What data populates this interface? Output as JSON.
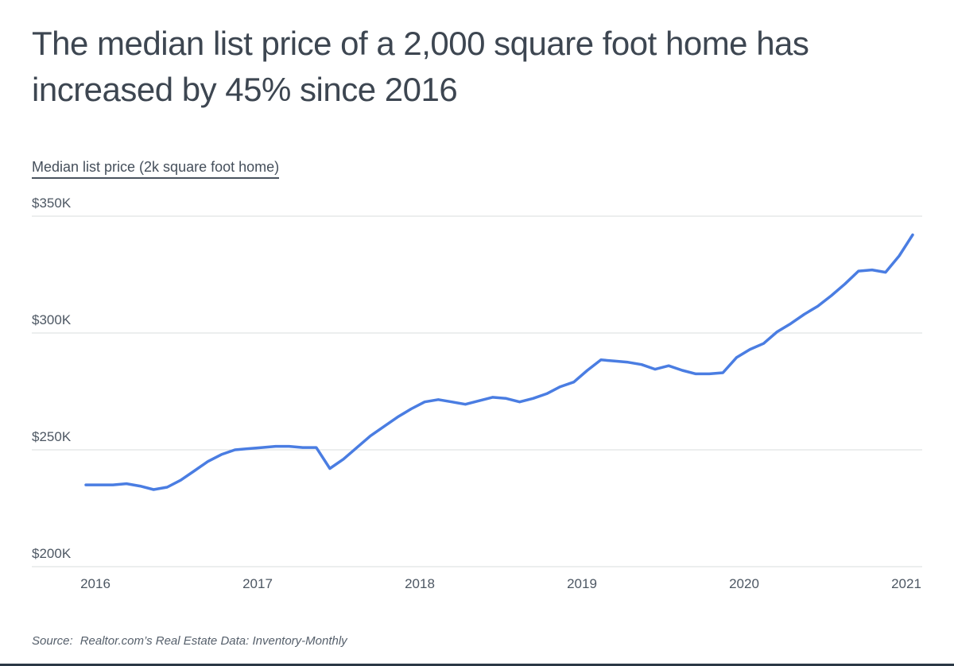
{
  "header": {
    "title_line1": "The median list price of a 2,000 square foot home has",
    "title_line2": "increased by 45% since 2016"
  },
  "legend": {
    "label": "Median list price (2k square foot home)"
  },
  "chart_data": {
    "type": "line",
    "title": "Median list price (2k square foot home)",
    "x_start": "2016-01",
    "x_interval": "monthly",
    "unit": "USD thousands",
    "values": [
      235,
      235,
      235,
      235.5,
      234.5,
      233,
      234,
      237,
      241,
      245,
      248,
      250,
      250.5,
      251,
      251.5,
      251.5,
      251,
      251,
      242,
      246,
      251,
      256,
      260,
      264,
      267.5,
      270.5,
      271.5,
      270.5,
      269.5,
      271,
      272.5,
      272,
      270.5,
      272,
      274,
      277,
      279,
      284,
      288.5,
      288,
      287.5,
      286.5,
      284.5,
      286,
      284,
      282.5,
      282.5,
      283,
      289.5,
      293,
      295.5,
      300.5,
      304,
      308,
      311.5,
      316,
      321,
      326.5,
      327,
      326,
      333,
      342
    ],
    "x_tick_labels": [
      "2016",
      "2017",
      "2018",
      "2019",
      "2020",
      "2021"
    ],
    "y_ticks": [
      {
        "label": "$350K",
        "value": 350
      },
      {
        "label": "$300K",
        "value": 300
      },
      {
        "label": "$250K",
        "value": 250
      },
      {
        "label": "$200K",
        "value": 200
      }
    ],
    "ylim": [
      200,
      350
    ],
    "grid": "horizontal",
    "legend_position": "top-left",
    "line_color": "#4a7de2",
    "gridline_color": "#d9dcde"
  },
  "footer": {
    "source_label": "Source:",
    "source_text": "Realtor.com’s Real Estate Data: Inventory-Monthly"
  }
}
